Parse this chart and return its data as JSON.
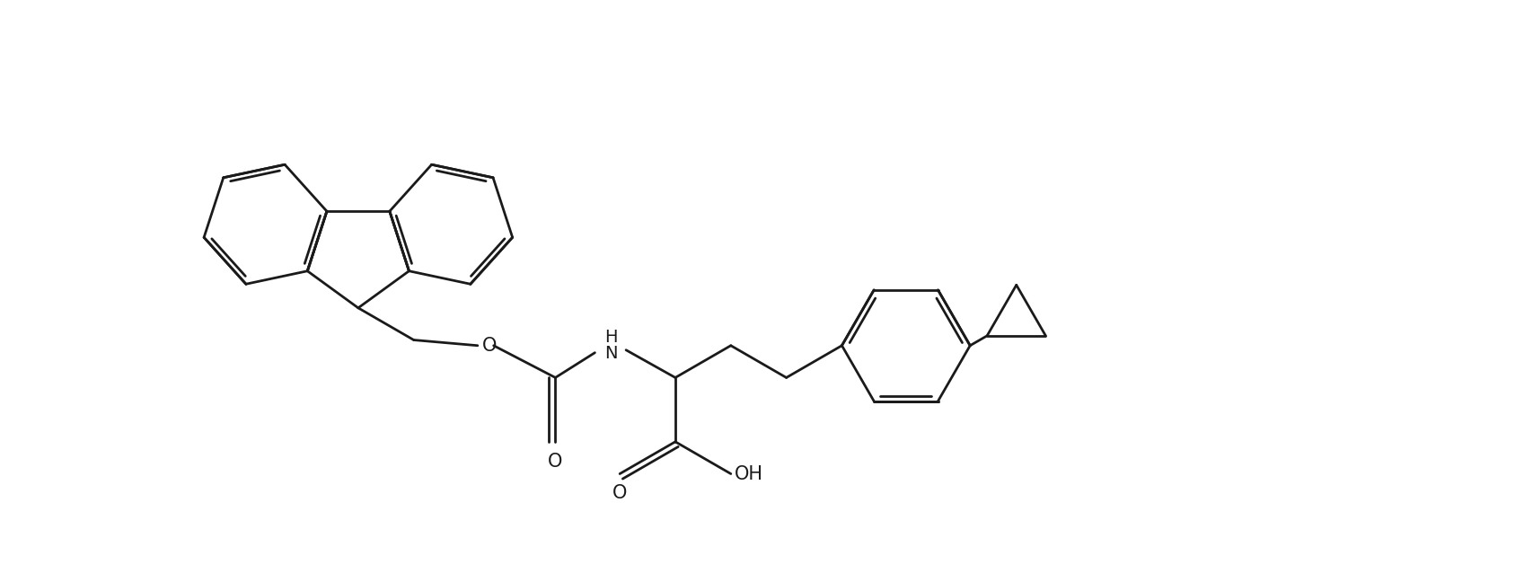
{
  "background_color": "#ffffff",
  "line_color": "#1a1a1a",
  "line_width": 2.0,
  "figsize": [
    16.97,
    6.48
  ],
  "dpi": 100,
  "xlim": [
    0,
    16.97
  ],
  "ylim": [
    0,
    6.48
  ]
}
